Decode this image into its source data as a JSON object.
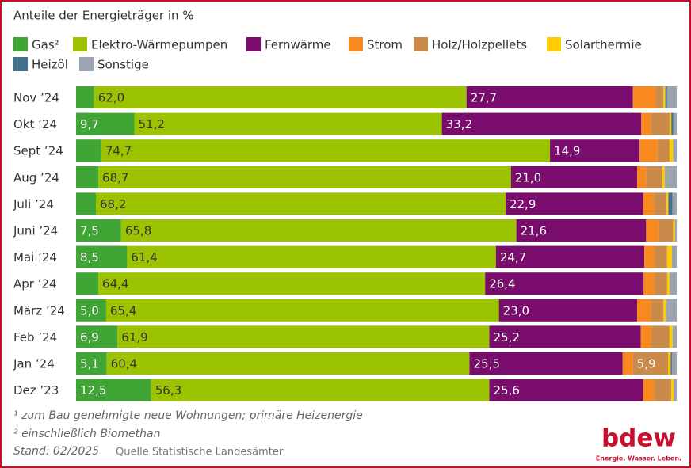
{
  "chart_data": {
    "type": "stacked-bar-horizontal",
    "title": "Anteile der Energieträger in %",
    "categories": [
      "Nov ’24",
      "Okt ’24",
      "Sept ’24",
      "Aug ’24",
      "Juli ’24",
      "Juni ’24",
      "Mai ’24",
      "Apr ’24",
      "März ’24",
      "Feb ’24",
      "Jan ’24",
      "Dez ’23"
    ],
    "xlim": [
      0,
      100
    ],
    "series": [
      {
        "name": "Gas²",
        "color": "#3fa535",
        "values": [
          3.0,
          9.7,
          4.2,
          3.7,
          3.3,
          7.5,
          8.5,
          3.7,
          5.0,
          6.9,
          5.1,
          12.5
        ],
        "value_labels": [
          null,
          "9,7",
          null,
          null,
          null,
          "7,5",
          "8,5",
          null,
          "5,0",
          "6,9",
          "5,1",
          "12,5"
        ]
      },
      {
        "name": "Elektro-Wärmepumpen",
        "color": "#9bc300",
        "values": [
          62.0,
          51.2,
          74.7,
          68.7,
          68.2,
          65.8,
          61.4,
          64.4,
          65.4,
          61.9,
          60.4,
          56.3
        ],
        "value_labels": [
          "62,0",
          "51,2",
          "74,7",
          "68,7",
          "68,2",
          "65,8",
          "61,4",
          "64,4",
          "65,4",
          "61,9",
          "60,4",
          "56,3"
        ]
      },
      {
        "name": "Fernwärme",
        "color": "#7a0c6e",
        "values": [
          27.7,
          33.2,
          14.9,
          21.0,
          22.9,
          21.6,
          24.7,
          26.4,
          23.0,
          25.2,
          25.5,
          25.6
        ],
        "value_labels": [
          "27,7",
          "33,2",
          "14,9",
          "21,0",
          "22,9",
          "21,6",
          "24,7",
          "26,4",
          "23,0",
          "25,2",
          "25,5",
          "25,6"
        ]
      },
      {
        "name": "Strom",
        "color": "#f7891f",
        "values": [
          3.8,
          1.6,
          3.0,
          1.5,
          1.8,
          2.1,
          1.7,
          1.8,
          2.3,
          1.8,
          1.7,
          1.8
        ]
      },
      {
        "name": "Holz/Holzpellets",
        "color": "#c98a4a",
        "values": [
          1.3,
          3.1,
          2.0,
          2.7,
          2.1,
          2.4,
          2.1,
          2.1,
          2.1,
          3.0,
          5.9,
          2.9
        ],
        "value_labels": [
          null,
          null,
          null,
          null,
          null,
          null,
          null,
          null,
          null,
          null,
          "5,9",
          null
        ]
      },
      {
        "name": "Solarthermie",
        "color": "#ffcc00",
        "values": [
          0.3,
          0.3,
          0.6,
          0.4,
          0.3,
          0.3,
          0.8,
          0.4,
          0.4,
          0.5,
          0.4,
          0.4
        ]
      },
      {
        "name": "Heizöl",
        "color": "#44708f",
        "values": [
          0.3,
          0.3,
          0,
          0,
          0.7,
          0,
          0,
          0,
          0,
          0,
          0.2,
          0
        ]
      },
      {
        "name": "Sonstige",
        "color": "#9aa5b1",
        "values": [
          1.6,
          0.6,
          0.6,
          2.0,
          0.7,
          0.3,
          0.8,
          1.2,
          1.8,
          0.7,
          0.8,
          0.5
        ]
      }
    ],
    "footnotes": [
      "¹ zum Bau genehmigte neue Wohnungen; primäre Heizenergie",
      "² einschließlich Biomethan"
    ],
    "stand": "Stand: 02/2025",
    "source": "Quelle Statistische Landesämter",
    "logo": "bdew",
    "tagline": "Energie. Wasser. Leben."
  }
}
